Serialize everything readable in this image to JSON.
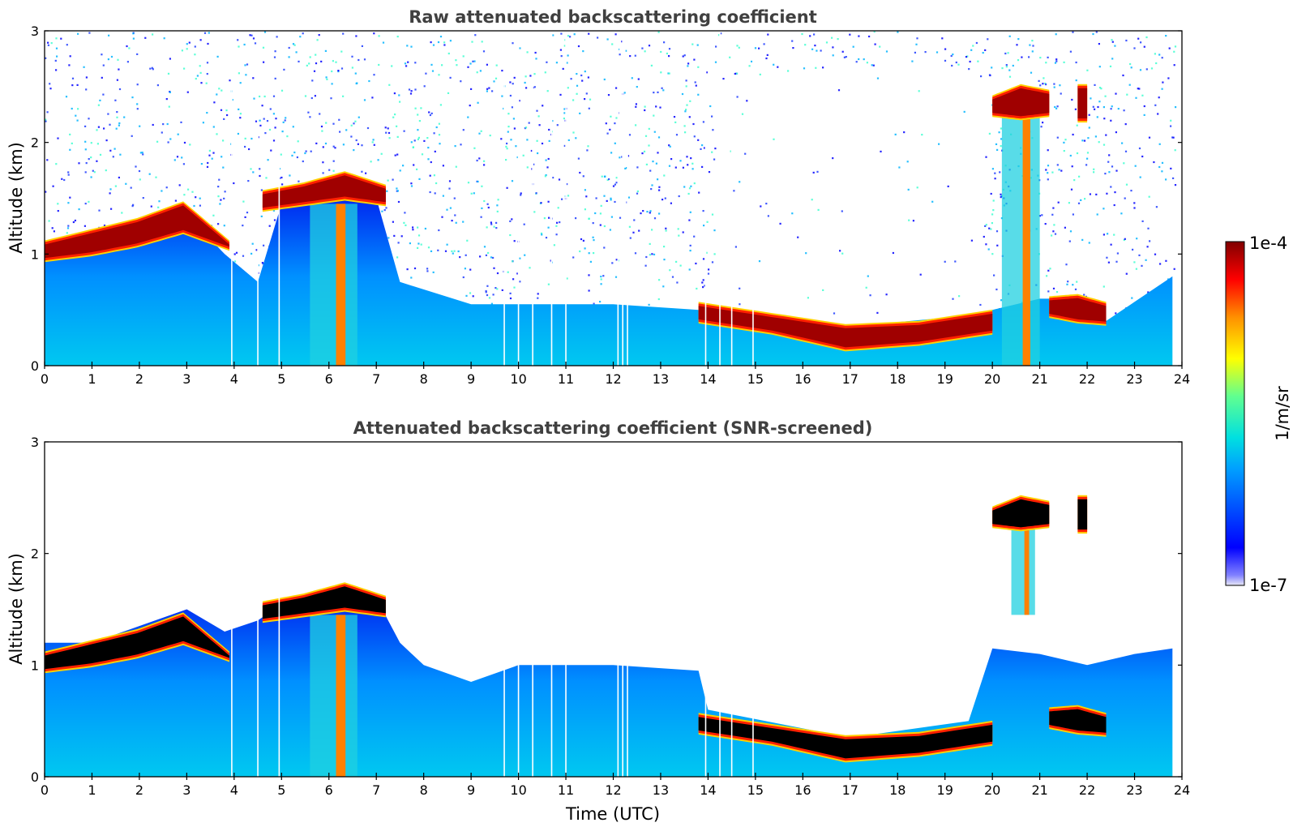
{
  "chart_data": [
    {
      "type": "heatmap",
      "title": "Raw attenuated backscattering coefficient",
      "xlabel": "",
      "ylabel": "Altitude (km)",
      "xlim": [
        0,
        24
      ],
      "ylim": [
        0,
        3
      ],
      "xticks": [
        "0",
        "1",
        "2",
        "3",
        "4",
        "5",
        "6",
        "7",
        "8",
        "9",
        "10",
        "11",
        "12",
        "13",
        "14",
        "15",
        "16",
        "17",
        "18",
        "19",
        "20",
        "21",
        "22",
        "23",
        "24"
      ],
      "yticks": [
        "0",
        "1",
        "2",
        "3"
      ],
      "colormap": "jet",
      "color_scale": "log",
      "noise_above_layer": true,
      "aerosol_top_km": [
        [
          0,
          1.05
        ],
        [
          1,
          1.2
        ],
        [
          2,
          1.25
        ],
        [
          3,
          1.35
        ],
        [
          3.8,
          1.0
        ],
        [
          4.5,
          0.75
        ],
        [
          5,
          1.45
        ],
        [
          6,
          1.6
        ],
        [
          7,
          1.5
        ],
        [
          7.5,
          0.75
        ],
        [
          9,
          0.55
        ],
        [
          12,
          0.55
        ],
        [
          13.8,
          0.5
        ],
        [
          14,
          0.45
        ],
        [
          17,
          0.35
        ],
        [
          19.5,
          0.45
        ],
        [
          20,
          0.5
        ],
        [
          21,
          0.6
        ],
        [
          22,
          0.6
        ],
        [
          22.4,
          0.4
        ],
        [
          23.8,
          0.8
        ]
      ],
      "cloud_layers": [
        {
          "time": [
            0.0,
            3.9
          ],
          "base_km": [
            0.95,
            1.0,
            1.08,
            1.2,
            1.05
          ],
          "top_km": [
            1.1,
            1.2,
            1.3,
            1.45,
            1.1
          ]
        },
        {
          "time": [
            4.6,
            7.2
          ],
          "base_km": [
            1.4,
            1.45,
            1.5,
            1.45
          ],
          "top_km": [
            1.55,
            1.62,
            1.72,
            1.6
          ]
        },
        {
          "time": [
            13.8,
            20.0
          ],
          "base_km": [
            0.4,
            0.3,
            0.15,
            0.2,
            0.3
          ],
          "top_km": [
            0.55,
            0.45,
            0.35,
            0.38,
            0.48
          ]
        },
        {
          "time": [
            20.0,
            21.2
          ],
          "base_km": [
            2.25,
            2.22,
            2.25
          ],
          "top_km": [
            2.4,
            2.5,
            2.45
          ]
        },
        {
          "time": [
            21.8,
            22.0
          ],
          "base_km": [
            2.2
          ],
          "top_km": [
            2.5
          ]
        },
        {
          "time": [
            21.2,
            22.4
          ],
          "base_km": [
            0.45,
            0.4,
            0.38
          ],
          "top_km": [
            0.6,
            0.62,
            0.55
          ]
        }
      ],
      "precipitation_shafts": [
        {
          "time": [
            5.6,
            6.6
          ],
          "from_km": 0,
          "to_km": 1.45
        },
        {
          "time": [
            20.2,
            21.0
          ],
          "from_km": 0,
          "to_km": 2.25
        }
      ],
      "data_gaps_hours": [
        3.95,
        4.5,
        4.95,
        9.7,
        10.0,
        10.3,
        10.7,
        11.0,
        12.1,
        12.2,
        12.3,
        13.95,
        14.25,
        14.5,
        14.95
      ]
    },
    {
      "type": "heatmap",
      "title": "Attenuated backscattering coefficient (SNR-screened)",
      "xlabel": "Time (UTC)",
      "ylabel": "Altitude (km)",
      "xlim": [
        0,
        24
      ],
      "ylim": [
        0,
        3
      ],
      "xticks": [
        "0",
        "1",
        "2",
        "3",
        "4",
        "5",
        "6",
        "7",
        "8",
        "9",
        "10",
        "11",
        "12",
        "13",
        "14",
        "15",
        "16",
        "17",
        "18",
        "19",
        "20",
        "21",
        "22",
        "23",
        "24"
      ],
      "yticks": [
        "0",
        "1",
        "2",
        "3"
      ],
      "colormap": "jet",
      "color_scale": "log",
      "noise_above_layer": false,
      "saturated_color": "#000000",
      "aerosol_top_km": [
        [
          0,
          1.2
        ],
        [
          1,
          1.2
        ],
        [
          2,
          1.35
        ],
        [
          3,
          1.5
        ],
        [
          3.8,
          1.3
        ],
        [
          4.5,
          1.4
        ],
        [
          5,
          1.55
        ],
        [
          6,
          1.7
        ],
        [
          7,
          1.6
        ],
        [
          7.5,
          1.2
        ],
        [
          8,
          1.0
        ],
        [
          9,
          0.85
        ],
        [
          10,
          1.0
        ],
        [
          12,
          1.0
        ],
        [
          13.8,
          0.95
        ],
        [
          14,
          0.6
        ],
        [
          17,
          0.35
        ],
        [
          19.5,
          0.5
        ],
        [
          20,
          1.15
        ],
        [
          21,
          1.1
        ],
        [
          22,
          1.0
        ],
        [
          23,
          1.1
        ],
        [
          23.8,
          1.15
        ]
      ],
      "cloud_layers": [
        {
          "time": [
            0.0,
            3.9
          ],
          "base_km": [
            0.95,
            1.0,
            1.08,
            1.2,
            1.05
          ],
          "top_km": [
            1.1,
            1.2,
            1.3,
            1.45,
            1.1
          ]
        },
        {
          "time": [
            4.6,
            7.2
          ],
          "base_km": [
            1.4,
            1.45,
            1.5,
            1.45
          ],
          "top_km": [
            1.55,
            1.62,
            1.72,
            1.6
          ]
        },
        {
          "time": [
            13.8,
            20.0
          ],
          "base_km": [
            0.4,
            0.3,
            0.15,
            0.2,
            0.3
          ],
          "top_km": [
            0.55,
            0.45,
            0.35,
            0.38,
            0.48
          ]
        },
        {
          "time": [
            20.0,
            21.2
          ],
          "base_km": [
            2.25,
            2.22,
            2.25
          ],
          "top_km": [
            2.4,
            2.5,
            2.45
          ]
        },
        {
          "time": [
            21.8,
            22.0
          ],
          "base_km": [
            2.2
          ],
          "top_km": [
            2.5
          ]
        },
        {
          "time": [
            21.2,
            22.4
          ],
          "base_km": [
            0.45,
            0.4,
            0.38
          ],
          "top_km": [
            0.6,
            0.62,
            0.55
          ]
        }
      ],
      "precipitation_shafts": [
        {
          "time": [
            5.6,
            6.6
          ],
          "from_km": 0,
          "to_km": 1.45
        },
        {
          "time": [
            20.4,
            20.9
          ],
          "from_km": 1.45,
          "to_km": 2.25
        }
      ],
      "data_gaps_hours": [
        3.95,
        4.5,
        4.95,
        9.7,
        10.0,
        10.3,
        10.7,
        11.0,
        12.1,
        12.2,
        12.3,
        13.95,
        14.25,
        14.5,
        14.95
      ]
    }
  ],
  "colorbar": {
    "label": "1/m/sr",
    "max_label": "1e-4",
    "min_label": "1e-7",
    "colormap": "jet"
  }
}
